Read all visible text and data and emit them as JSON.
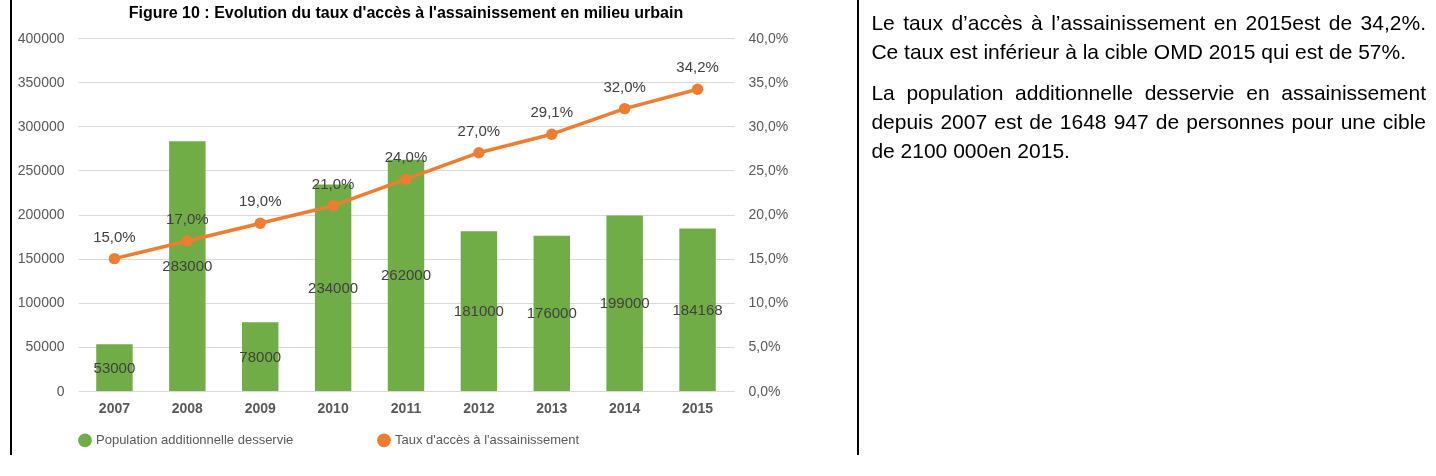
{
  "chart_data": {
    "type": "bar",
    "title": "Figure 10 : Evolution du taux d'accès à l'assainissement en milieu urbain",
    "categories": [
      "2007",
      "2008",
      "2009",
      "2010",
      "2011",
      "2012",
      "2013",
      "2014",
      "2015"
    ],
    "series": [
      {
        "name": "Population additionnelle desservie",
        "color": "#70ad47",
        "values": [
          53000,
          283000,
          78000,
          234000,
          262000,
          181000,
          176000,
          199000,
          184168
        ],
        "value_labels": [
          "53000",
          "283000",
          "78000",
          "234000",
          "262000",
          "181000",
          "176000",
          "199000",
          "184168"
        ]
      },
      {
        "name": "Taux d'accès à l'assainissement",
        "type": "line",
        "axis": "y2",
        "color": "#ed7d31",
        "values": [
          15.0,
          17.0,
          19.0,
          21.0,
          24.0,
          27.0,
          29.1,
          32.0,
          34.2
        ],
        "value_labels": [
          "15,0%",
          "17,0%",
          "19,0%",
          "21,0%",
          "24,0%",
          "27,0%",
          "29,1%",
          "32,0%",
          "34,2%"
        ]
      }
    ],
    "ylim": [
      0,
      400000
    ],
    "yticks": [
      0,
      50000,
      100000,
      150000,
      200000,
      250000,
      300000,
      350000,
      400000
    ],
    "y2lim": [
      0,
      40
    ],
    "y2ticks": [
      {
        "value": 0,
        "label": "0,0%"
      },
      {
        "value": 5,
        "label": "5,0%"
      },
      {
        "value": 10,
        "label": "10,0%"
      },
      {
        "value": 15,
        "label": "15,0%"
      },
      {
        "value": 20,
        "label": "20,0%"
      },
      {
        "value": 25,
        "label": "25,0%"
      },
      {
        "value": 30,
        "label": "30,0%"
      },
      {
        "value": 35,
        "label": "35,0%"
      },
      {
        "value": 40,
        "label": "40,0%"
      }
    ],
    "grid": "y",
    "legend": "bottom",
    "marker": "circle",
    "line_style": "solid",
    "annotations": [
      "Le taux d’accès à l’assainissement en 2015est de 34,2%. Ce taux est inférieur à la cible OMD 2015 qui est de 57%.",
      "La population additionnelle desservie en assainissement depuis 2007 est de 1648 947 de personnes pour une cible de 2100 000en 2015."
    ]
  }
}
